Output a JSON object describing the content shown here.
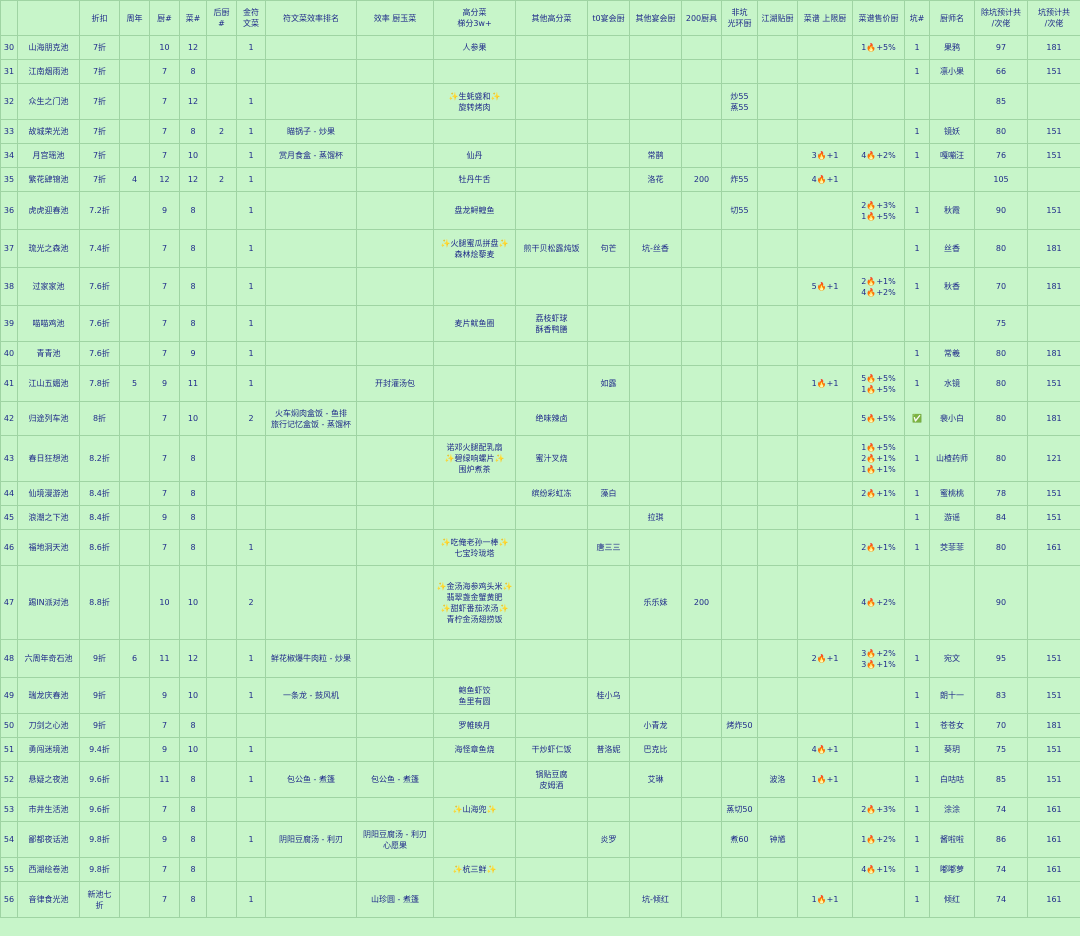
{
  "headers": [
    "",
    "",
    "折扣",
    "周年",
    "厨#",
    "菜#",
    "后厨\n#",
    "金符\n文菜",
    "符文菜效率排名",
    "效率 厨玉菜",
    "高分菜\n梯分3w+",
    "其他高分菜",
    "t0宴会厨",
    "其他宴会厨",
    "200厨具",
    "非坑\n光环厨",
    "江湖贴厨",
    "菜谱 上限厨",
    "菜谱售价厨",
    "坑#",
    "厨师名",
    "除坑预计共\n/次佬",
    "坑预计共\n/次佬"
  ],
  "rows": [
    [
      "30",
      "山海朋克池",
      "7折",
      "",
      "10",
      "12",
      "",
      "1",
      "",
      "",
      "人参果",
      "",
      "",
      "",
      "",
      "",
      "",
      "",
      "1🔥+5%",
      "1",
      "果鸦",
      "97",
      "181"
    ],
    [
      "31",
      "江南烟雨池",
      "7折",
      "",
      "7",
      "8",
      "",
      "",
      "",
      "",
      "",
      "",
      "",
      "",
      "",
      "",
      "",
      "",
      "",
      "1",
      "凛小果",
      "66",
      "151"
    ],
    [
      "32",
      "众生之门池",
      "7折",
      "",
      "7",
      "12",
      "",
      "1",
      "",
      "",
      "✨生蚝盛和✨\n旋转烤肉",
      "",
      "",
      "",
      "",
      "炒55\n蒸55",
      "",
      "",
      "",
      "",
      "",
      "85",
      ""
    ],
    [
      "33",
      "故城荣光池",
      "7折",
      "",
      "7",
      "8",
      "2",
      "1",
      "瞄锅子 - 炒果",
      "",
      "",
      "",
      "",
      "",
      "",
      "",
      "",
      "",
      "",
      "1",
      "镜妖",
      "80",
      "151"
    ],
    [
      "34",
      "月宫瑶池",
      "7折",
      "",
      "7",
      "10",
      "",
      "1",
      "赏月食盒 - 蒸馏杯",
      "",
      "仙丹",
      "",
      "",
      "常鹊",
      "",
      "",
      "",
      "3🔥+1",
      "4🔥+2%",
      "1",
      "嘎嘣汪",
      "76",
      "151"
    ],
    [
      "35",
      "繁花肆锦池",
      "7折",
      "4",
      "12",
      "12",
      "2",
      "1",
      "",
      "",
      "牡丹牛舌",
      "",
      "",
      "洛花",
      "200",
      "炸55",
      "",
      "4🔥+1",
      "",
      "",
      "",
      "105",
      ""
    ],
    [
      "36",
      "虎虎迎春池",
      "7.2折",
      "",
      "9",
      "8",
      "",
      "1",
      "",
      "",
      "盘龙鲟鳇鱼",
      "",
      "",
      "",
      "",
      "切55",
      "",
      "",
      "2🔥+3%\n1🔥+5%",
      "1",
      "秋霞",
      "90",
      "151"
    ],
    [
      "37",
      "琉光之森池",
      "7.4折",
      "",
      "7",
      "8",
      "",
      "1",
      "",
      "",
      "✨火腿蜜瓜拼盘✨\n森林烩藜麦",
      "煎干贝松露炖饭",
      "句芒",
      "坑-丝香",
      "",
      "",
      "",
      "",
      "",
      "1",
      "丝香",
      "80",
      "181"
    ],
    [
      "38",
      "过家家池",
      "7.6折",
      "",
      "7",
      "8",
      "",
      "1",
      "",
      "",
      "",
      "",
      "",
      "",
      "",
      "",
      "",
      "5🔥+1",
      "2🔥+1%\n4🔥+2%",
      "1",
      "秋香",
      "70",
      "181"
    ],
    [
      "39",
      "喵喵鸡池",
      "7.6折",
      "",
      "7",
      "8",
      "",
      "1",
      "",
      "",
      "麦片鱿鱼圈",
      "荔枝虾球\n酥香鸭膳",
      "",
      "",
      "",
      "",
      "",
      "",
      "",
      "",
      "",
      "75",
      ""
    ],
    [
      "40",
      "青青池",
      "7.6折",
      "",
      "7",
      "9",
      "",
      "1",
      "",
      "",
      "",
      "",
      "",
      "",
      "",
      "",
      "",
      "",
      "",
      "1",
      "常羲",
      "80",
      "181"
    ],
    [
      "41",
      "江山五媚池",
      "7.8折",
      "5",
      "9",
      "11",
      "",
      "1",
      "",
      "开封灌汤包",
      "",
      "",
      "如露",
      "",
      "",
      "",
      "",
      "1🔥+1",
      "5🔥+5%\n1🔥+5%",
      "1",
      "水镜",
      "80",
      "151"
    ],
    [
      "42",
      "归途列车池",
      "8折",
      "",
      "7",
      "10",
      "",
      "2",
      "火车焖肉盒饭 - 鱼排\n旅行记忆盒饭 - 蒸馏杯",
      "",
      "",
      "绝味辣卤",
      "",
      "",
      "",
      "",
      "",
      "",
      "5🔥+5%",
      "✅",
      "裴小白",
      "80",
      "181"
    ],
    [
      "43",
      "春日狂想池",
      "8.2折",
      "",
      "7",
      "8",
      "",
      "",
      "",
      "",
      "诺邓火腿配乳扇\n✨碧绿响螺片✨\n围炉煮茶",
      "蜜汁叉烧",
      "",
      "",
      "",
      "",
      "",
      "",
      "1🔥+5%\n2🔥+1%\n1🔥+1%",
      "1",
      "山楂药师",
      "80",
      "121"
    ],
    [
      "44",
      "仙境漫游池",
      "8.4折",
      "",
      "7",
      "8",
      "",
      "",
      "",
      "",
      "",
      "缤纷彩虹冻",
      "藻白",
      "",
      "",
      "",
      "",
      "",
      "2🔥+1%",
      "1",
      "蜜桃桃",
      "78",
      "151"
    ],
    [
      "45",
      "浪潮之下池",
      "8.4折",
      "",
      "9",
      "8",
      "",
      "",
      "",
      "",
      "",
      "",
      "",
      "拉琪",
      "",
      "",
      "",
      "",
      "",
      "1",
      "游谣",
      "84",
      "151"
    ],
    [
      "46",
      "福地洞天池",
      "8.6折",
      "",
      "7",
      "8",
      "",
      "1",
      "",
      "",
      "✨吃俺老孙一棒✨\n七宝玲珑塔",
      "",
      "唐三三",
      "",
      "",
      "",
      "",
      "",
      "2🔥+1%",
      "1",
      "茭菲菲",
      "80",
      "161"
    ],
    [
      "47",
      "踢IN派对池",
      "8.8折",
      "",
      "10",
      "10",
      "",
      "2",
      "",
      "",
      "✨金汤海参鸡头米✨\n翡翠盏金蟹黄肥\n✨甜虾番茄浓汤✨\n青柠金汤翅捞饭",
      "",
      "",
      "乐乐妹",
      "200",
      "",
      "",
      "",
      "4🔥+2%",
      "",
      "",
      "90",
      ""
    ],
    [
      "48",
      "六周年奇石池",
      "9折",
      "6",
      "11",
      "12",
      "",
      "1",
      "鲜花椒爆牛肉粒 - 炒果",
      "",
      "",
      "",
      "",
      "",
      "",
      "",
      "",
      "2🔥+1",
      "3🔥+2%\n3🔥+1%",
      "1",
      "宛文",
      "95",
      "151"
    ],
    [
      "49",
      "瑞龙庆春池",
      "9折",
      "",
      "9",
      "10",
      "",
      "1",
      "一条龙 - 鼓风机",
      "",
      "鲍鱼虾饺\n鱼里有圆",
      "",
      "桂小乌",
      "",
      "",
      "",
      "",
      "",
      "",
      "1",
      "朗十一",
      "83",
      "151"
    ],
    [
      "50",
      "刀剑之心池",
      "9折",
      "",
      "7",
      "8",
      "",
      "",
      "",
      "",
      "罗帷映月",
      "",
      "",
      "小青龙",
      "",
      "烤炸50",
      "",
      "",
      "",
      "1",
      "苍苍女",
      "70",
      "181"
    ],
    [
      "51",
      "勇闯迷境池",
      "9.4折",
      "",
      "9",
      "10",
      "",
      "1",
      "",
      "",
      "海怪章鱼烧",
      "干炒虾仁饭",
      "普洛妮",
      "巴克比",
      "",
      "",
      "",
      "4🔥+1",
      "",
      "1",
      "葵玥",
      "75",
      "151"
    ],
    [
      "52",
      "悬疑之夜池",
      "9.6折",
      "",
      "11",
      "8",
      "",
      "1",
      "包公鱼 - 煮篷",
      "包公鱼 - 煮篷",
      "",
      "锅贴豆腐\n皮姆酒",
      "",
      "艾琳",
      "",
      "",
      "波洛",
      "1🔥+1",
      "",
      "1",
      "白咕咕",
      "85",
      "151"
    ],
    [
      "53",
      "市井生活池",
      "9.6折",
      "",
      "7",
      "8",
      "",
      "",
      "",
      "",
      "✨山海兜✨",
      "",
      "",
      "",
      "",
      "蒸切50",
      "",
      "",
      "2🔥+3%",
      "1",
      "涂涂",
      "74",
      "161"
    ],
    [
      "54",
      "鄙都夜话池",
      "9.8折",
      "",
      "9",
      "8",
      "",
      "1",
      "阴阳豆腐汤 - 利刃",
      "阴阳豆腐汤 - 利刃\n心愿果",
      "",
      "",
      "炎罗",
      "",
      "",
      "煮60",
      "钟馗",
      "",
      "1🔥+2%",
      "1",
      "酱啦啦",
      "86",
      "161"
    ],
    [
      "55",
      "西湖绘卷池",
      "9.8折",
      "",
      "7",
      "8",
      "",
      "",
      "",
      "",
      "✨杭三鲜✨",
      "",
      "",
      "",
      "",
      "",
      "",
      "",
      "4🔥+1%",
      "1",
      "嘟嘟萝",
      "74",
      "161"
    ],
    [
      "56",
      "音律食光池",
      "新池七\n折",
      "",
      "7",
      "8",
      "",
      "1",
      "",
      "山珍圆 - 煮篷",
      "",
      "",
      "",
      "坑-倾红",
      "",
      "",
      "",
      "1🔥+1",
      "",
      "1",
      "倾红",
      "74",
      "161"
    ]
  ]
}
